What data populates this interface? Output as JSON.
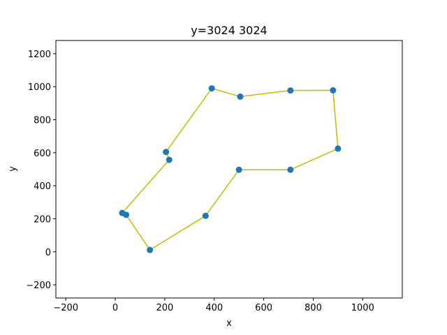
{
  "chart_data": {
    "type": "scatter",
    "title": "y=3024 3024",
    "xlabel": "x",
    "ylabel": "y",
    "xlim": [
      -240,
      1160
    ],
    "ylim": [
      -280,
      1280
    ],
    "xticks": [
      -200,
      0,
      200,
      400,
      600,
      800,
      1000
    ],
    "yticks": [
      -200,
      0,
      200,
      400,
      600,
      800,
      1000,
      1200
    ],
    "grid": false,
    "point_color": "#1f77b4",
    "line_color": "#bfbf00",
    "points": [
      {
        "x": 28,
        "y": 235
      },
      {
        "x": 44,
        "y": 224
      },
      {
        "x": 140,
        "y": 11
      },
      {
        "x": 365,
        "y": 218
      },
      {
        "x": 500,
        "y": 497
      },
      {
        "x": 708,
        "y": 497
      },
      {
        "x": 900,
        "y": 625
      },
      {
        "x": 880,
        "y": 978
      },
      {
        "x": 708,
        "y": 977
      },
      {
        "x": 505,
        "y": 940
      },
      {
        "x": 390,
        "y": 990
      },
      {
        "x": 205,
        "y": 605
      },
      {
        "x": 218,
        "y": 557
      }
    ],
    "path_order": [
      1,
      2,
      3,
      4,
      5,
      6,
      7,
      8,
      9,
      10,
      11,
      12,
      0,
      1
    ]
  }
}
